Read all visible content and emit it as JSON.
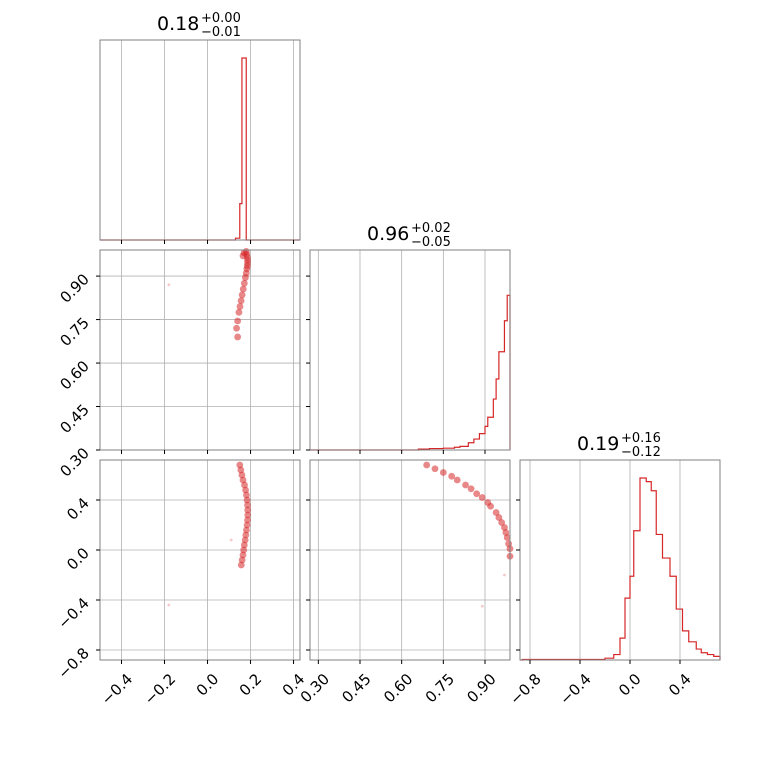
{
  "colors": {
    "series": "#d62728",
    "grid": "#b0b0b0",
    "frame": "#808080"
  },
  "chart_data": [
    {
      "type": "histogram",
      "panel": "p1-marginal",
      "title": {
        "value": "0.18",
        "plus": "+0.00",
        "minus": "−0.01"
      },
      "xlim": [
        -0.5,
        0.43
      ],
      "x_ticks": [
        -0.4,
        -0.2,
        0.0,
        0.2,
        0.4
      ],
      "bins": [
        [
          0.13,
          0.14,
          0.01
        ],
        [
          0.14,
          0.15,
          0.01
        ],
        [
          0.15,
          0.16,
          0.2
        ],
        [
          0.16,
          0.17,
          1.0
        ],
        [
          0.17,
          0.18,
          1.0
        ],
        [
          0.18,
          0.19,
          0.0
        ]
      ],
      "grid": true
    },
    {
      "type": "histogram",
      "panel": "p2-marginal",
      "title": {
        "value": "0.96",
        "plus": "+0.02",
        "minus": "−0.05"
      },
      "xlim": [
        0.27,
        0.99
      ],
      "x_ticks": [
        0.3,
        0.45,
        0.6,
        0.75,
        0.9
      ],
      "bins": [
        [
          0.66,
          0.7,
          0.005
        ],
        [
          0.7,
          0.75,
          0.008
        ],
        [
          0.75,
          0.79,
          0.01
        ],
        [
          0.79,
          0.81,
          0.015
        ],
        [
          0.81,
          0.84,
          0.02
        ],
        [
          0.84,
          0.86,
          0.04
        ],
        [
          0.86,
          0.88,
          0.06
        ],
        [
          0.88,
          0.9,
          0.09
        ],
        [
          0.9,
          0.91,
          0.13
        ],
        [
          0.91,
          0.93,
          0.18
        ],
        [
          0.93,
          0.94,
          0.28
        ],
        [
          0.94,
          0.95,
          0.39
        ],
        [
          0.95,
          0.97,
          0.54
        ],
        [
          0.97,
          0.98,
          0.71
        ],
        [
          0.98,
          0.99,
          0.85
        ]
      ],
      "grid": true
    },
    {
      "type": "histogram",
      "panel": "p3-marginal",
      "title": {
        "value": "0.19",
        "plus": "+0.16",
        "minus": "−0.12"
      },
      "xlim": [
        -0.88,
        0.72
      ],
      "x_ticks": [
        -0.8,
        -0.4,
        0.0,
        0.4
      ],
      "bins": [
        [
          -0.86,
          -0.2,
          0.003
        ],
        [
          -0.2,
          -0.13,
          0.01
        ],
        [
          -0.13,
          -0.08,
          0.03
        ],
        [
          -0.08,
          -0.04,
          0.12
        ],
        [
          -0.04,
          0.0,
          0.34
        ],
        [
          0.0,
          0.03,
          0.46
        ],
        [
          0.03,
          0.08,
          0.71
        ],
        [
          0.08,
          0.13,
          1.0
        ],
        [
          0.13,
          0.17,
          0.98
        ],
        [
          0.17,
          0.21,
          0.93
        ],
        [
          0.21,
          0.26,
          0.69
        ],
        [
          0.26,
          0.32,
          0.56
        ],
        [
          0.32,
          0.37,
          0.46
        ],
        [
          0.37,
          0.42,
          0.28
        ],
        [
          0.42,
          0.47,
          0.16
        ],
        [
          0.47,
          0.53,
          0.1
        ],
        [
          0.53,
          0.57,
          0.06
        ],
        [
          0.57,
          0.62,
          0.04
        ],
        [
          0.62,
          0.67,
          0.03
        ],
        [
          0.67,
          0.72,
          0.02
        ]
      ],
      "grid": true
    },
    {
      "type": "scatter",
      "panel": "p1-p2-joint",
      "xlim": [
        -0.5,
        0.43
      ],
      "ylim": [
        0.3,
        0.99
      ],
      "y_ticks": [
        0.3,
        0.45,
        0.6,
        0.75,
        0.9
      ],
      "points": [
        [
          0.18,
          0.985
        ],
        [
          0.182,
          0.975
        ],
        [
          0.185,
          0.965
        ],
        [
          0.186,
          0.955
        ],
        [
          0.186,
          0.945
        ],
        [
          0.185,
          0.935
        ],
        [
          0.183,
          0.925
        ],
        [
          0.18,
          0.91
        ],
        [
          0.176,
          0.895
        ],
        [
          0.171,
          0.875
        ],
        [
          0.166,
          0.855
        ],
        [
          0.161,
          0.835
        ],
        [
          0.156,
          0.815
        ],
        [
          0.151,
          0.795
        ],
        [
          0.146,
          0.775
        ],
        [
          0.14,
          0.745
        ],
        [
          0.135,
          0.72
        ],
        [
          0.14,
          0.69
        ],
        [
          -0.18,
          0.87
        ],
        [
          0.165,
          0.97
        ],
        [
          0.17,
          0.98
        ]
      ],
      "grid": true
    },
    {
      "type": "scatter",
      "panel": "p1-p3-joint",
      "xlim": [
        -0.5,
        0.43
      ],
      "ylim": [
        -0.88,
        0.72
      ],
      "y_ticks": [
        -0.8,
        -0.4,
        0.0,
        0.4
      ],
      "points": [
        [
          0.15,
          0.68
        ],
        [
          0.155,
          0.64
        ],
        [
          0.16,
          0.6
        ],
        [
          0.165,
          0.56
        ],
        [
          0.172,
          0.52
        ],
        [
          0.177,
          0.48
        ],
        [
          0.181,
          0.44
        ],
        [
          0.184,
          0.4
        ],
        [
          0.186,
          0.36
        ],
        [
          0.187,
          0.32
        ],
        [
          0.187,
          0.28
        ],
        [
          0.186,
          0.24
        ],
        [
          0.184,
          0.2
        ],
        [
          0.181,
          0.16
        ],
        [
          0.178,
          0.12
        ],
        [
          0.175,
          0.08
        ],
        [
          0.171,
          0.04
        ],
        [
          0.168,
          0.0
        ],
        [
          0.165,
          -0.04
        ],
        [
          0.161,
          -0.08
        ],
        [
          0.157,
          -0.12
        ],
        [
          -0.18,
          -0.44
        ],
        [
          0.11,
          0.08
        ]
      ],
      "grid": true
    },
    {
      "type": "scatter",
      "panel": "p2-p3-joint",
      "xlim": [
        0.27,
        0.99
      ],
      "ylim": [
        -0.88,
        0.72
      ],
      "points": [
        [
          0.69,
          0.68
        ],
        [
          0.72,
          0.65
        ],
        [
          0.75,
          0.62
        ],
        [
          0.78,
          0.59
        ],
        [
          0.8,
          0.56
        ],
        [
          0.83,
          0.52
        ],
        [
          0.85,
          0.49
        ],
        [
          0.87,
          0.45
        ],
        [
          0.89,
          0.42
        ],
        [
          0.91,
          0.38
        ],
        [
          0.92,
          0.35
        ],
        [
          0.94,
          0.3
        ],
        [
          0.95,
          0.26
        ],
        [
          0.96,
          0.22
        ],
        [
          0.97,
          0.18
        ],
        [
          0.975,
          0.14
        ],
        [
          0.98,
          0.1
        ],
        [
          0.985,
          0.05
        ],
        [
          0.99,
          0.01
        ],
        [
          0.99,
          -0.05
        ],
        [
          0.89,
          -0.45
        ],
        [
          0.97,
          -0.2
        ]
      ],
      "grid": true
    }
  ]
}
